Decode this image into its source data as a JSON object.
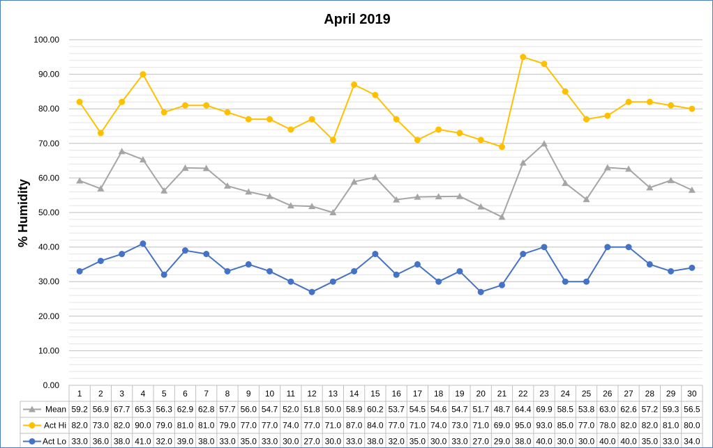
{
  "chart_data": {
    "type": "line",
    "title": "April 2019",
    "xlabel": "",
    "ylabel": "% Humidity",
    "ylim": [
      0,
      100
    ],
    "y_ticks": [
      "0.00",
      "10.00",
      "20.00",
      "30.00",
      "40.00",
      "50.00",
      "60.00",
      "70.00",
      "80.00",
      "90.00",
      "100.00"
    ],
    "grid": true,
    "legend": "data-table",
    "categories": [
      "1",
      "2",
      "3",
      "4",
      "5",
      "6",
      "7",
      "8",
      "9",
      "10",
      "11",
      "12",
      "13",
      "14",
      "15",
      "16",
      "17",
      "18",
      "19",
      "20",
      "21",
      "22",
      "23",
      "24",
      "25",
      "26",
      "27",
      "28",
      "29",
      "30"
    ],
    "series": [
      {
        "name": "Mean",
        "marker": "triangle",
        "color": "#a5a5a5",
        "values": [
          59.2,
          56.9,
          67.7,
          65.3,
          56.3,
          62.9,
          62.8,
          57.7,
          56.0,
          54.7,
          52.0,
          51.8,
          50.0,
          58.9,
          60.2,
          53.7,
          54.5,
          54.6,
          54.7,
          51.7,
          48.7,
          64.4,
          69.9,
          58.5,
          53.8,
          63.0,
          62.6,
          57.2,
          59.3,
          56.5
        ]
      },
      {
        "name": "Act Hi",
        "marker": "circle",
        "color": "#ffc000",
        "values": [
          82.0,
          73.0,
          82.0,
          90.0,
          79.0,
          81.0,
          81.0,
          79.0,
          77.0,
          77.0,
          74.0,
          77.0,
          71.0,
          87.0,
          84.0,
          77.0,
          71.0,
          74.0,
          73.0,
          71.0,
          69.0,
          95.0,
          93.0,
          85.0,
          77.0,
          78.0,
          82.0,
          82.0,
          81.0,
          80.0
        ]
      },
      {
        "name": "Act Lo",
        "marker": "circle",
        "color": "#4472c4",
        "values": [
          33.0,
          36.0,
          38.0,
          41.0,
          32.0,
          39.0,
          38.0,
          33.0,
          35.0,
          33.0,
          30.0,
          27.0,
          30.0,
          33.0,
          38.0,
          32.0,
          35.0,
          30.0,
          33.0,
          27.0,
          29.0,
          38.0,
          40.0,
          30.0,
          30.0,
          40.0,
          40.0,
          35.0,
          33.0,
          34.0
        ]
      }
    ]
  }
}
